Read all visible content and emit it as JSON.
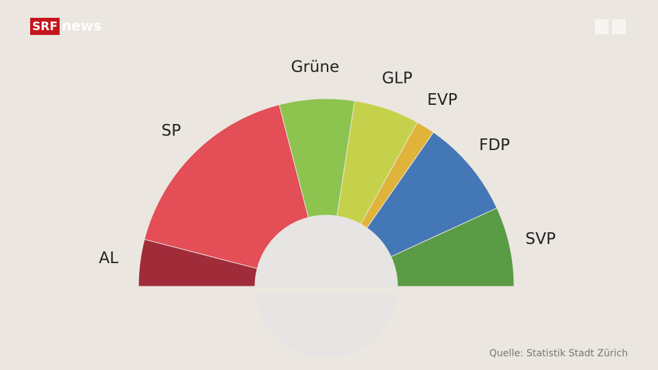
{
  "logo": {
    "brand": "SRF",
    "product": "news"
  },
  "chart_data": {
    "type": "parliament",
    "categories": [
      "AL",
      "SP",
      "Grüne",
      "GLP",
      "EVP",
      "FDP",
      "SVP"
    ],
    "values": [
      10,
      42,
      16,
      14,
      4,
      21,
      17
    ],
    "colors": [
      "#a02c3a",
      "#e34e57",
      "#8cc44f",
      "#c6d14b",
      "#e0b43a",
      "#4477b6",
      "#5a9b45"
    ],
    "source": "Quelle: Statistik Stadt Zürich"
  }
}
